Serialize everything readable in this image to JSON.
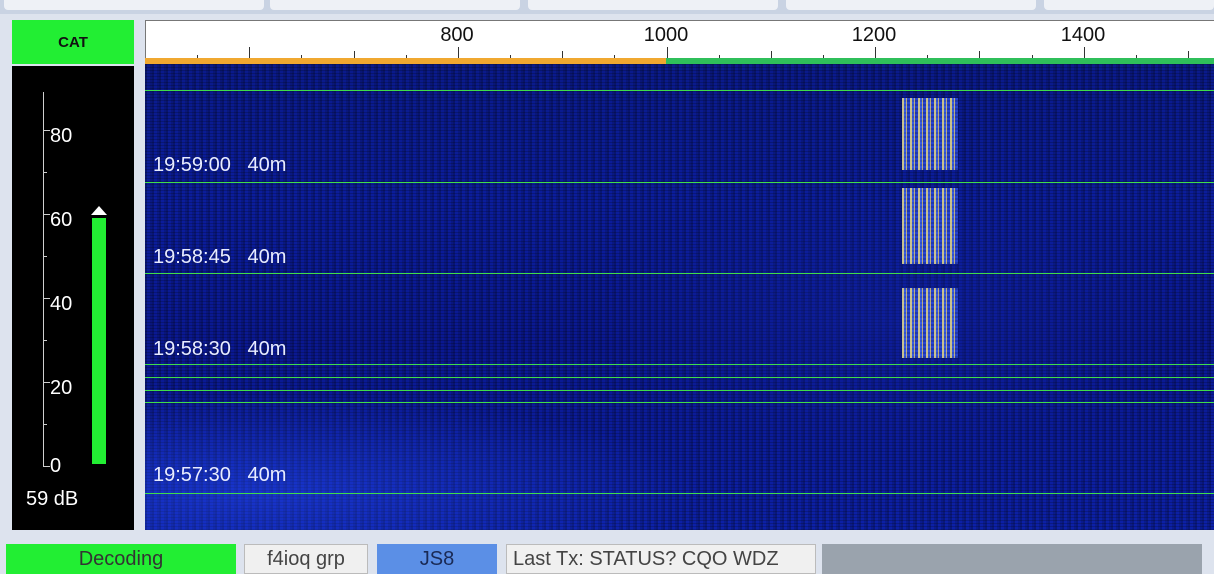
{
  "cat_button": {
    "label": "CAT",
    "color": "#22ee33"
  },
  "meter": {
    "scale_labels": [
      "80",
      "60",
      "40",
      "20",
      "0"
    ],
    "level_db": 59,
    "level_label": "59 dB",
    "peak_db": 62,
    "bar_color": "#22ee33"
  },
  "frequency_scale": {
    "labels": [
      "800",
      "1000",
      "1200",
      "1400"
    ]
  },
  "waterfall": {
    "timestamps": [
      {
        "time": "19:59:00",
        "band": "40m"
      },
      {
        "time": "19:58:45",
        "band": "40m"
      },
      {
        "time": "19:58:30",
        "band": "40m"
      },
      {
        "time": "19:57:30",
        "band": "40m"
      }
    ],
    "separator_color": "#3fdc4a",
    "background_color": "#0b1d9c"
  },
  "status_bar": {
    "decoding": "Decoding",
    "callsign": "f4ioq grp",
    "mode": "JS8",
    "last_tx": "Last Tx: STATUS? CQO WDZ"
  }
}
